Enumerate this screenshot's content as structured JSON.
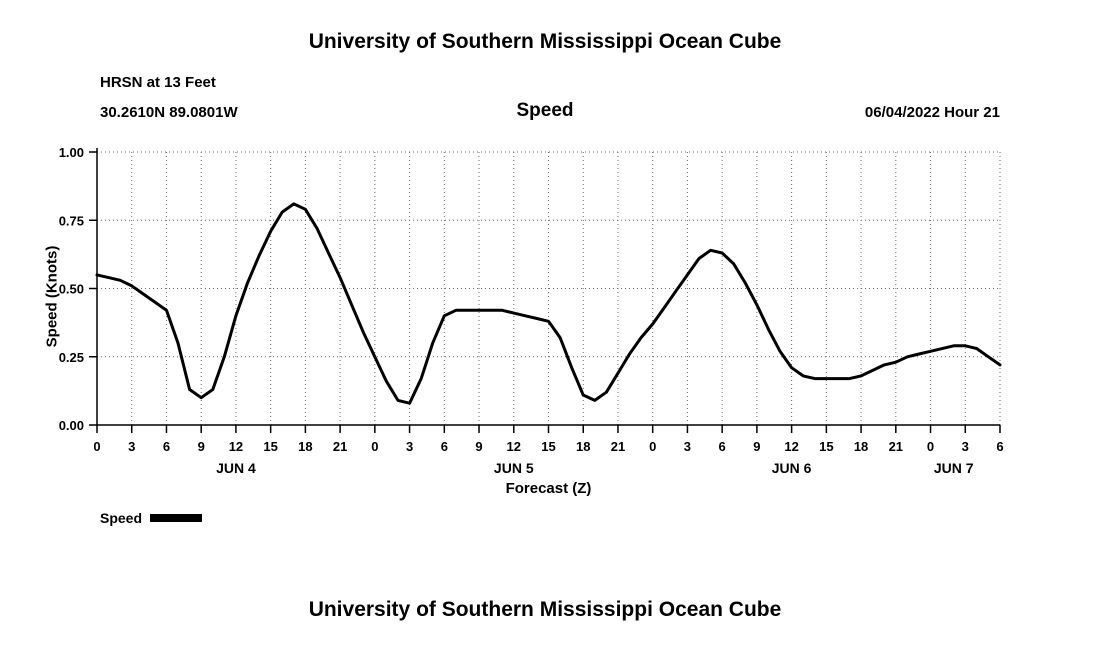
{
  "page": {
    "title_top": "University of Southern Mississippi Ocean Cube",
    "title_bottom": "University of Southern Mississippi Ocean Cube"
  },
  "header": {
    "station": "HRSN at 13 Feet",
    "coordinates": "30.2610N  89.0801W",
    "plot_title": "Speed",
    "run_time": "06/04/2022 Hour 21"
  },
  "legend": {
    "label": "Speed"
  },
  "chart_data": {
    "type": "line",
    "title": "Speed",
    "xlabel": "Forecast (Z)",
    "ylabel": "Speed (Knots)",
    "ylim": [
      0,
      1
    ],
    "xlim": [
      0,
      78
    ],
    "grid": "dotted",
    "legend_position": "bottom-left",
    "yticks": [
      {
        "v": 0.0,
        "label": "0.00"
      },
      {
        "v": 0.25,
        "label": "0.25"
      },
      {
        "v": 0.5,
        "label": "0.50"
      },
      {
        "v": 0.75,
        "label": "0.75"
      },
      {
        "v": 1.0,
        "label": "1.00"
      }
    ],
    "xtick_step_hours": 3,
    "xtick_labels": [
      "0",
      "3",
      "6",
      "9",
      "12",
      "15",
      "18",
      "21",
      "0",
      "3",
      "6",
      "9",
      "12",
      "15",
      "18",
      "21",
      "0",
      "3",
      "6",
      "9",
      "12",
      "15",
      "18",
      "21",
      "0",
      "3",
      "6"
    ],
    "day_labels": [
      {
        "label": "JUN 4",
        "hour": 12
      },
      {
        "label": "JUN 5",
        "hour": 36
      },
      {
        "label": "JUN 6",
        "hour": 60
      },
      {
        "label": "JUN 7",
        "hour": 74
      }
    ],
    "series": [
      {
        "name": "Speed",
        "color": "#000000",
        "x_start_hour": 0,
        "x_step_hours": 1,
        "values": [
          0.55,
          0.54,
          0.53,
          0.51,
          0.48,
          0.45,
          0.42,
          0.3,
          0.13,
          0.1,
          0.13,
          0.25,
          0.4,
          0.52,
          0.62,
          0.71,
          0.78,
          0.81,
          0.79,
          0.72,
          0.63,
          0.54,
          0.44,
          0.34,
          0.25,
          0.16,
          0.09,
          0.08,
          0.17,
          0.3,
          0.4,
          0.42,
          0.42,
          0.42,
          0.42,
          0.42,
          0.41,
          0.4,
          0.39,
          0.38,
          0.32,
          0.21,
          0.11,
          0.09,
          0.12,
          0.19,
          0.26,
          0.32,
          0.37,
          0.43,
          0.49,
          0.55,
          0.61,
          0.64,
          0.63,
          0.59,
          0.52,
          0.44,
          0.35,
          0.27,
          0.21,
          0.18,
          0.17,
          0.17,
          0.17,
          0.17,
          0.18,
          0.2,
          0.22,
          0.23,
          0.25,
          0.26,
          0.27,
          0.28,
          0.29,
          0.29,
          0.28,
          0.25,
          0.22
        ]
      }
    ]
  },
  "colors": {
    "background": "#ffffff",
    "line": "#000000",
    "grid": "#6b6b6b",
    "text": "#000000"
  }
}
